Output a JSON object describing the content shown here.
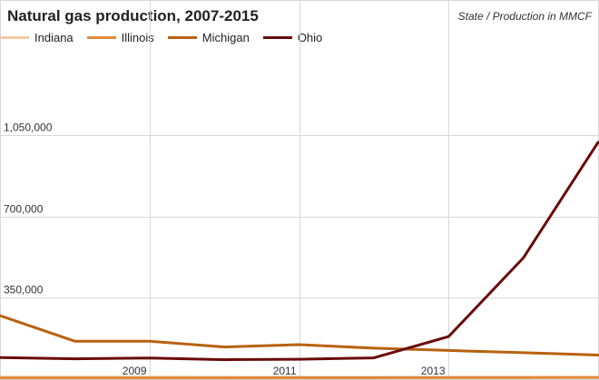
{
  "title": "Natural gas production, 2007-2015",
  "subtitle": "State / Production in MMCF",
  "colors": {
    "Indiana": "#f5c8a0",
    "Illinois": "#e08a3c",
    "Michigan": "#b8620e",
    "Ohio": "#6b0a0a",
    "grid": "#d8d8d8",
    "background": "#ffffff"
  },
  "chart_data": {
    "type": "line",
    "title": "Natural gas production, 2007-2015",
    "subtitle": "State / Production in MMCF",
    "x": [
      2007,
      2008,
      2009,
      2010,
      2011,
      2012,
      2013,
      2014,
      2015
    ],
    "x_tick_labels": [
      "2009",
      "2011",
      "2013"
    ],
    "x_ticks": [
      2009,
      2011,
      2013
    ],
    "y_tick_labels": [
      "350,000",
      "700,000",
      "1,050,000"
    ],
    "y_ticks": [
      350000,
      700000,
      1050000
    ],
    "xlim": [
      2007,
      2015
    ],
    "ylim": [
      0,
      1400000
    ],
    "grid": true,
    "legend_position": "top-left",
    "series": [
      {
        "name": "Indiana",
        "values": [
          5000,
          5000,
          5000,
          4500,
          4500,
          4500,
          4500,
          4500,
          4500
        ]
      },
      {
        "name": "Illinois",
        "values": [
          1500,
          1500,
          1500,
          1500,
          2000,
          2000,
          2500,
          2500,
          3000
        ]
      },
      {
        "name": "Michigan",
        "values": [
          270000,
          160000,
          160000,
          135000,
          145000,
          130000,
          120000,
          110000,
          100000
        ]
      },
      {
        "name": "Ohio",
        "values": [
          89000,
          84000,
          87000,
          80000,
          82000,
          88000,
          180000,
          520000,
          1020000
        ]
      }
    ]
  }
}
